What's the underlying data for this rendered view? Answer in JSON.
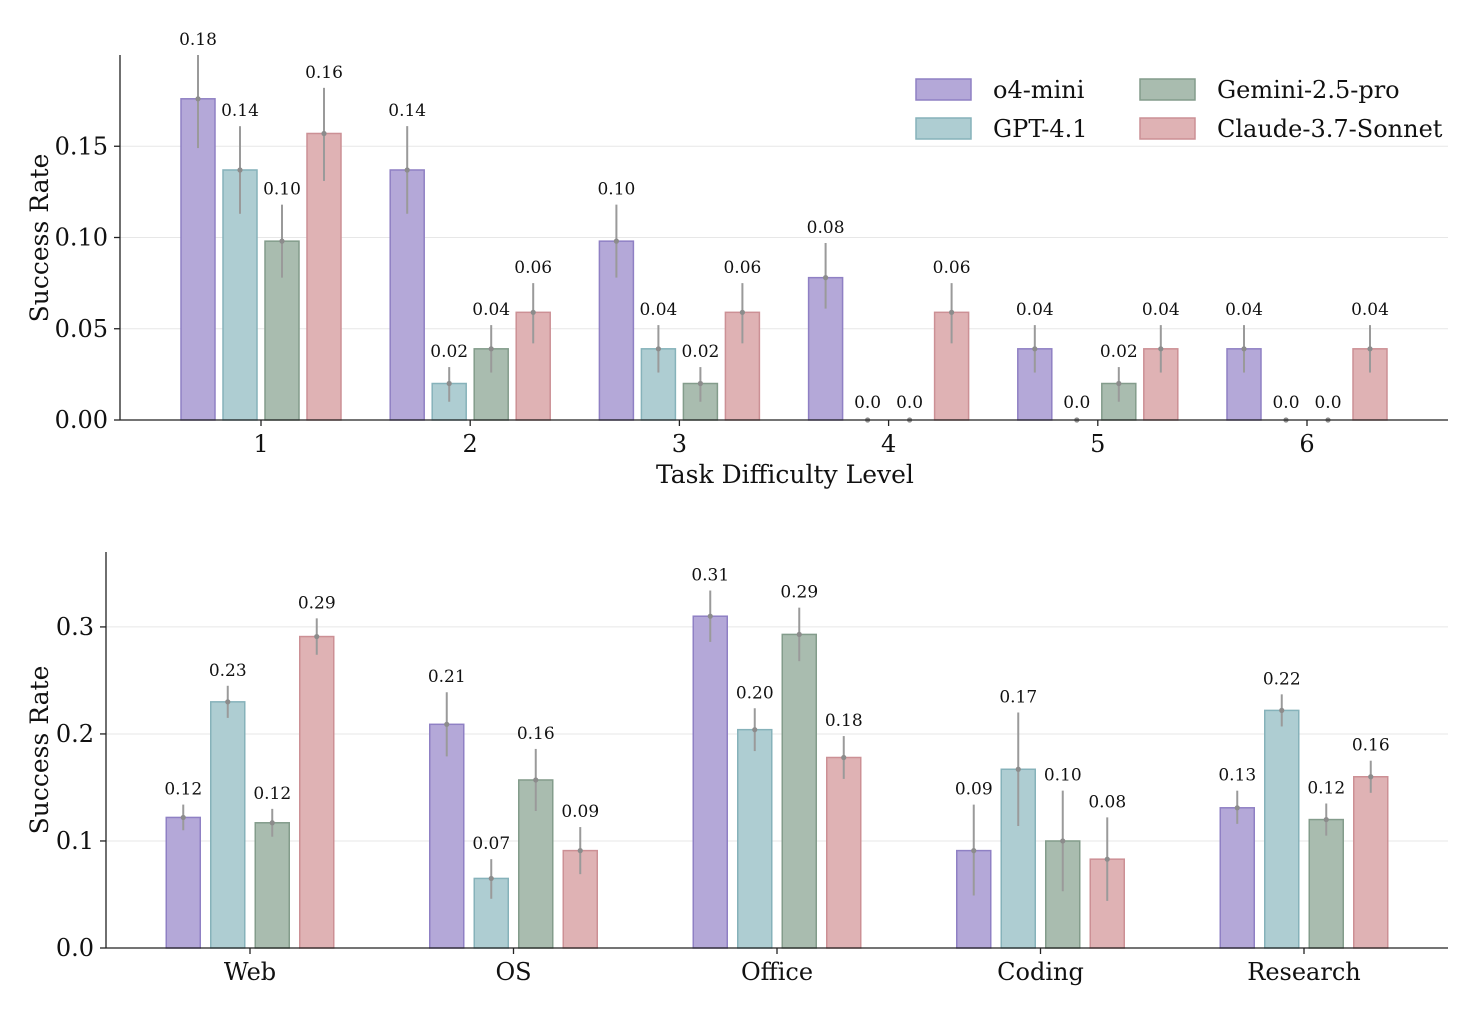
{
  "legend": {
    "placement": "top-right",
    "entries": [
      {
        "name": "o4-mini",
        "color": "#b4a8d8",
        "edge": "#8f80c4"
      },
      {
        "name": "GPT-4.1",
        "color": "#aecdd2",
        "edge": "#86b2ba"
      },
      {
        "name": "Gemini-2.5-pro",
        "color": "#a9bcaf",
        "edge": "#839c8b"
      },
      {
        "name": "Claude-3.7-Sonnet",
        "color": "#dfb2b4",
        "edge": "#cc9095"
      }
    ]
  },
  "chart_data": [
    {
      "type": "bar",
      "xlabel": "Task Difficulty Level",
      "ylabel": "Success Rate",
      "categories": [
        "1",
        "2",
        "3",
        "4",
        "5",
        "6"
      ],
      "ylim": [
        0,
        0.2
      ],
      "yticks": [
        0.0,
        0.05,
        0.1,
        0.15
      ],
      "ytick_labels": [
        "0.00",
        "0.05",
        "0.10",
        "0.15"
      ],
      "grid": true,
      "series": [
        {
          "name": "o4-mini",
          "values": [
            0.176,
            0.137,
            0.098,
            0.078,
            0.039,
            0.039
          ],
          "labels": [
            "0.18",
            "0.14",
            "0.10",
            "0.08",
            "0.04",
            "0.04"
          ],
          "err_low": [
            0.149,
            0.113,
            0.078,
            0.061,
            0.026,
            0.026
          ],
          "err_high": [
            0.2,
            0.161,
            0.118,
            0.097,
            0.052,
            0.052
          ]
        },
        {
          "name": "GPT-4.1",
          "values": [
            0.137,
            0.02,
            0.039,
            0.0,
            0.0,
            0.0
          ],
          "labels": [
            "0.14",
            "0.02",
            "0.04",
            "0.0",
            "0.0",
            "0.0"
          ],
          "err_low": [
            0.113,
            0.01,
            0.026,
            0.0,
            0.0,
            0.0
          ],
          "err_high": [
            0.161,
            0.029,
            0.052,
            0.0,
            0.0,
            0.0
          ]
        },
        {
          "name": "Gemini-2.5-pro",
          "values": [
            0.098,
            0.039,
            0.02,
            0.0,
            0.02,
            0.0
          ],
          "labels": [
            "0.10",
            "0.04",
            "0.02",
            "0.0",
            "0.02",
            "0.0"
          ],
          "err_low": [
            0.078,
            0.026,
            0.01,
            0.0,
            0.01,
            0.0
          ],
          "err_high": [
            0.118,
            0.052,
            0.029,
            0.0,
            0.029,
            0.0
          ]
        },
        {
          "name": "Claude-3.7-Sonnet",
          "values": [
            0.157,
            0.059,
            0.059,
            0.059,
            0.039,
            0.039
          ],
          "labels": [
            "0.16",
            "0.06",
            "0.06",
            "0.06",
            "0.04",
            "0.04"
          ],
          "err_low": [
            0.131,
            0.042,
            0.042,
            0.042,
            0.026,
            0.026
          ],
          "err_high": [
            0.182,
            0.075,
            0.075,
            0.075,
            0.052,
            0.052
          ]
        }
      ]
    },
    {
      "type": "bar",
      "xlabel": "",
      "ylabel": "Success Rate",
      "categories": [
        "Web",
        "OS",
        "Office",
        "Coding",
        "Research"
      ],
      "ylim": [
        0,
        0.37
      ],
      "yticks": [
        0.0,
        0.1,
        0.2,
        0.3
      ],
      "ytick_labels": [
        "0.0",
        "0.1",
        "0.2",
        "0.3"
      ],
      "grid": true,
      "series": [
        {
          "name": "o4-mini",
          "values": [
            0.122,
            0.209,
            0.31,
            0.091,
            0.131
          ],
          "labels": [
            "0.12",
            "0.21",
            "0.31",
            "0.09",
            "0.13"
          ],
          "err_low": [
            0.11,
            0.179,
            0.286,
            0.049,
            0.116
          ],
          "err_high": [
            0.134,
            0.239,
            0.334,
            0.134,
            0.147
          ]
        },
        {
          "name": "GPT-4.1",
          "values": [
            0.23,
            0.065,
            0.204,
            0.167,
            0.222
          ],
          "labels": [
            "0.23",
            "0.07",
            "0.20",
            "0.17",
            "0.22"
          ],
          "err_low": [
            0.215,
            0.046,
            0.184,
            0.114,
            0.207
          ],
          "err_high": [
            0.245,
            0.083,
            0.224,
            0.22,
            0.237
          ]
        },
        {
          "name": "Gemini-2.5-pro",
          "values": [
            0.117,
            0.157,
            0.293,
            0.1,
            0.12
          ],
          "labels": [
            "0.12",
            "0.16",
            "0.29",
            "0.10",
            "0.12"
          ],
          "err_low": [
            0.104,
            0.128,
            0.268,
            0.053,
            0.105
          ],
          "err_high": [
            0.13,
            0.186,
            0.318,
            0.147,
            0.135
          ]
        },
        {
          "name": "Claude-3.7-Sonnet",
          "values": [
            0.291,
            0.091,
            0.178,
            0.083,
            0.16
          ],
          "labels": [
            "0.29",
            "0.09",
            "0.18",
            "0.08",
            "0.16"
          ],
          "err_low": [
            0.274,
            0.069,
            0.158,
            0.044,
            0.145
          ],
          "err_high": [
            0.308,
            0.113,
            0.198,
            0.122,
            0.175
          ]
        }
      ]
    }
  ]
}
